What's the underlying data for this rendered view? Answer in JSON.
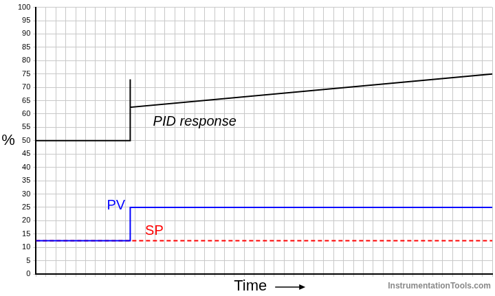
{
  "chart_data": {
    "type": "line",
    "x_label": "Time",
    "y_label": "%",
    "source": "InstrumentationTools.com",
    "xlim": [
      0,
      46
    ],
    "xticks": [
      0,
      1,
      2,
      3,
      4,
      5,
      6,
      7,
      8,
      9,
      10,
      11,
      12,
      13,
      14,
      15,
      16,
      17,
      18,
      19,
      20,
      21,
      22,
      23,
      24,
      25,
      26,
      27,
      28,
      29,
      30,
      31,
      32,
      33,
      34,
      35,
      36,
      37,
      38,
      39,
      40,
      41,
      42,
      43,
      44,
      45,
      46
    ],
    "ylim": [
      0,
      100
    ],
    "yticks": [
      0,
      5,
      10,
      15,
      20,
      25,
      30,
      35,
      40,
      45,
      50,
      55,
      60,
      65,
      70,
      75,
      80,
      85,
      90,
      95,
      100
    ],
    "grid": true,
    "tick_labels": "y",
    "series": [
      {
        "name": "PID response",
        "color": "#000000",
        "x": [
          0,
          9.5,
          9.5,
          9.5,
          46
        ],
        "values": [
          50,
          50,
          73,
          62.5,
          75
        ]
      },
      {
        "name": "PV",
        "color": "#0000ff",
        "x": [
          0,
          9.5,
          9.5,
          46
        ],
        "values": [
          12.5,
          12.5,
          25,
          25
        ]
      },
      {
        "name": "SP",
        "color": "#ff0000",
        "line_style": "dashed",
        "x": [
          0,
          46
        ],
        "values": [
          12.5,
          12.5
        ]
      }
    ]
  }
}
